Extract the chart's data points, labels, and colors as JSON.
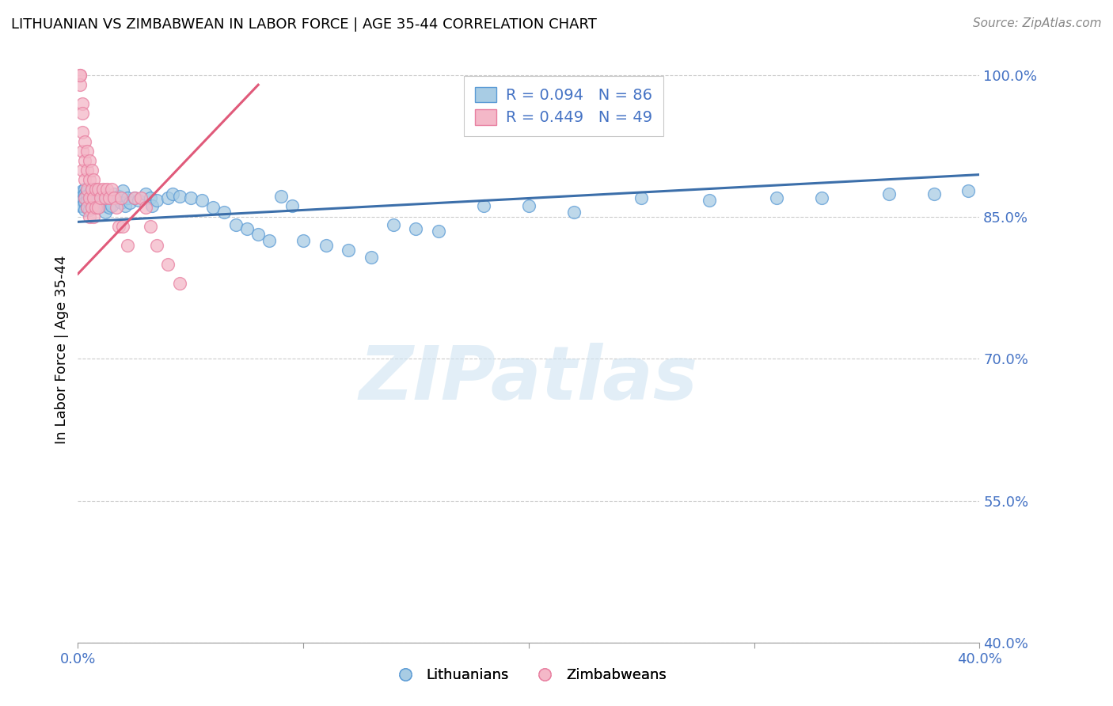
{
  "title": "LITHUANIAN VS ZIMBABWEAN IN LABOR FORCE | AGE 35-44 CORRELATION CHART",
  "source": "Source: ZipAtlas.com",
  "ylabel": "In Labor Force | Age 35-44",
  "xlabel": "",
  "xlim": [
    0.0,
    0.4
  ],
  "ylim": [
    0.4,
    1.02
  ],
  "ytick_positions": [
    1.0,
    0.85,
    0.7,
    0.55,
    0.4
  ],
  "ytick_labels": [
    "100.0%",
    "85.0%",
    "70.0%",
    "55.0%",
    "40.0%"
  ],
  "xtick_positions": [
    0.0,
    0.1,
    0.2,
    0.3,
    0.4
  ],
  "xtick_labels": [
    "0.0%",
    "",
    "",
    "",
    "40.0%"
  ],
  "legend_blue_label": "R = 0.094   N = 86",
  "legend_pink_label": "R = 0.449   N = 49",
  "legend_bottom_blue": "Lithuanians",
  "legend_bottom_pink": "Zimbabweans",
  "blue_color": "#a8cce4",
  "pink_color": "#f4b8c8",
  "blue_edge_color": "#5b9bd5",
  "pink_edge_color": "#e87fa0",
  "blue_line_color": "#3c6faa",
  "pink_line_color": "#e05a7a",
  "watermark": "ZIPatlas",
  "tick_color": "#4472c4",
  "grid_color": "#cccccc",
  "blue_line_x0": 0.0,
  "blue_line_y0": 0.845,
  "blue_line_x1": 0.4,
  "blue_line_y1": 0.895,
  "pink_line_x0": 0.0,
  "pink_line_y0": 0.79,
  "pink_line_x1": 0.08,
  "pink_line_y1": 0.99,
  "blue_x": [
    0.001,
    0.001,
    0.001,
    0.002,
    0.002,
    0.002,
    0.002,
    0.003,
    0.003,
    0.003,
    0.003,
    0.003,
    0.004,
    0.004,
    0.004,
    0.004,
    0.005,
    0.005,
    0.005,
    0.005,
    0.006,
    0.006,
    0.006,
    0.006,
    0.007,
    0.007,
    0.007,
    0.008,
    0.008,
    0.008,
    0.009,
    0.009,
    0.01,
    0.01,
    0.011,
    0.011,
    0.012,
    0.012,
    0.012,
    0.013,
    0.014,
    0.015,
    0.016,
    0.017,
    0.018,
    0.019,
    0.02,
    0.021,
    0.022,
    0.023,
    0.025,
    0.027,
    0.03,
    0.032,
    0.033,
    0.035,
    0.04,
    0.042,
    0.045,
    0.05,
    0.055,
    0.06,
    0.065,
    0.07,
    0.075,
    0.08,
    0.085,
    0.09,
    0.095,
    0.1,
    0.11,
    0.12,
    0.13,
    0.14,
    0.15,
    0.16,
    0.18,
    0.2,
    0.22,
    0.25,
    0.28,
    0.31,
    0.33,
    0.36,
    0.38,
    0.395
  ],
  "blue_y": [
    0.875,
    0.87,
    0.862,
    0.878,
    0.872,
    0.868,
    0.862,
    0.88,
    0.875,
    0.87,
    0.865,
    0.858,
    0.878,
    0.873,
    0.867,
    0.86,
    0.875,
    0.87,
    0.865,
    0.858,
    0.878,
    0.872,
    0.867,
    0.86,
    0.875,
    0.87,
    0.862,
    0.872,
    0.867,
    0.86,
    0.875,
    0.868,
    0.872,
    0.862,
    0.875,
    0.865,
    0.87,
    0.862,
    0.855,
    0.865,
    0.86,
    0.862,
    0.875,
    0.87,
    0.872,
    0.865,
    0.878,
    0.862,
    0.87,
    0.865,
    0.87,
    0.868,
    0.875,
    0.87,
    0.862,
    0.868,
    0.87,
    0.875,
    0.872,
    0.87,
    0.868,
    0.86,
    0.855,
    0.842,
    0.838,
    0.832,
    0.825,
    0.872,
    0.862,
    0.825,
    0.82,
    0.815,
    0.808,
    0.842,
    0.838,
    0.835,
    0.862,
    0.862,
    0.855,
    0.87,
    0.868,
    0.87,
    0.87,
    0.875,
    0.875,
    0.878
  ],
  "pink_x": [
    0.001,
    0.001,
    0.001,
    0.002,
    0.002,
    0.002,
    0.002,
    0.002,
    0.003,
    0.003,
    0.003,
    0.003,
    0.004,
    0.004,
    0.004,
    0.004,
    0.005,
    0.005,
    0.005,
    0.005,
    0.006,
    0.006,
    0.006,
    0.007,
    0.007,
    0.007,
    0.008,
    0.008,
    0.009,
    0.009,
    0.01,
    0.011,
    0.012,
    0.013,
    0.014,
    0.015,
    0.016,
    0.017,
    0.018,
    0.019,
    0.02,
    0.022,
    0.025,
    0.028,
    0.03,
    0.032,
    0.035,
    0.04,
    0.045
  ],
  "pink_y": [
    1.0,
    0.99,
    1.0,
    0.97,
    0.96,
    0.94,
    0.92,
    0.9,
    0.93,
    0.91,
    0.89,
    0.87,
    0.92,
    0.9,
    0.88,
    0.86,
    0.91,
    0.89,
    0.87,
    0.85,
    0.9,
    0.88,
    0.86,
    0.89,
    0.87,
    0.85,
    0.88,
    0.86,
    0.88,
    0.86,
    0.87,
    0.88,
    0.87,
    0.88,
    0.87,
    0.88,
    0.87,
    0.86,
    0.84,
    0.87,
    0.84,
    0.82,
    0.87,
    0.87,
    0.86,
    0.84,
    0.82,
    0.8,
    0.78
  ]
}
